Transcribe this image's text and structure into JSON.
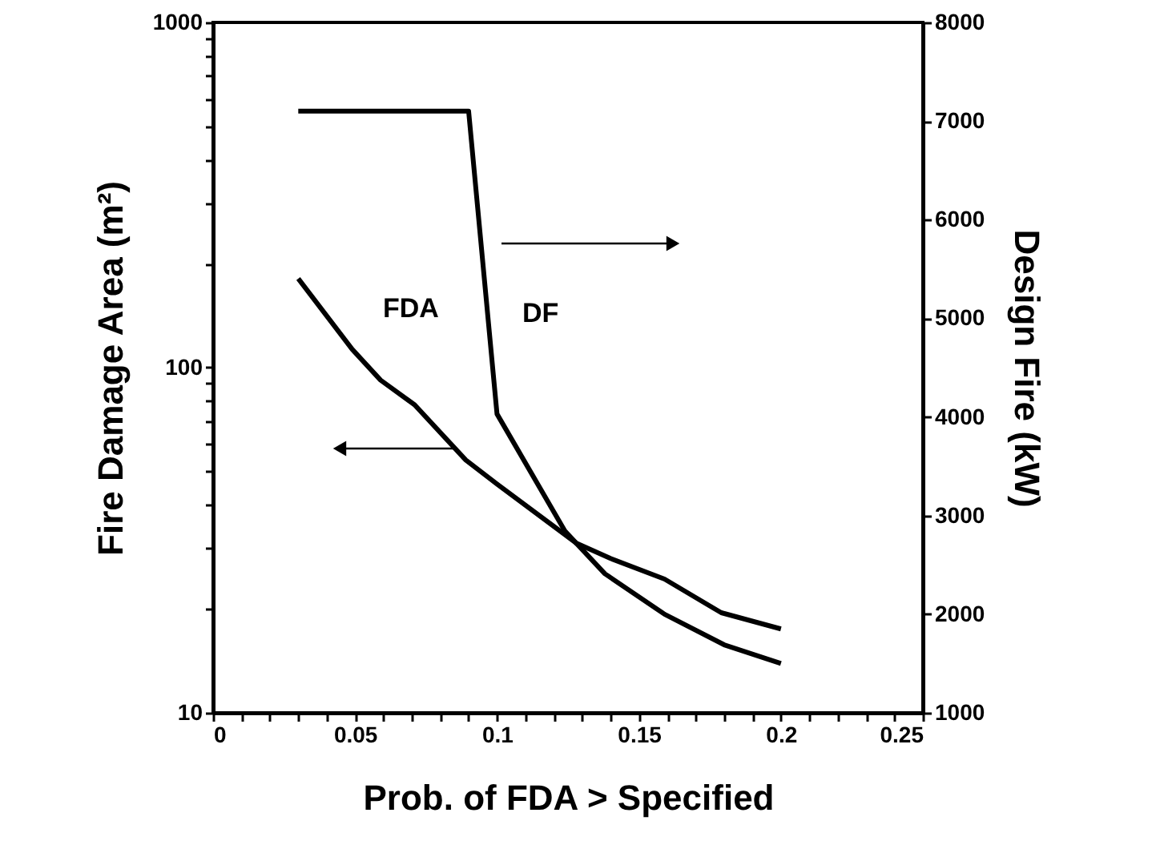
{
  "chart_data": {
    "type": "line",
    "xlabel": "Prob. of FDA > Specified",
    "ylabel": "Fire Damage Area (m²)",
    "y2label": "Design Fire (kW)",
    "log": "y",
    "grid": false,
    "marker": "none",
    "line_style": "solid",
    "xlim": [
      0,
      0.25
    ],
    "xticks": [
      0,
      {
        "value": 0.01,
        "label": null
      },
      {
        "value": 0.02,
        "label": null
      },
      {
        "value": 0.03,
        "label": null
      },
      {
        "value": 0.04,
        "label": null
      },
      0.05,
      {
        "value": 0.06,
        "label": null
      },
      {
        "value": 0.07,
        "label": null
      },
      {
        "value": 0.08,
        "label": null
      },
      {
        "value": 0.09,
        "label": null
      },
      0.1,
      {
        "value": 0.11,
        "label": null
      },
      {
        "value": 0.12,
        "label": null
      },
      {
        "value": 0.13,
        "label": null
      },
      {
        "value": 0.14,
        "label": null
      },
      0.15,
      {
        "value": 0.16,
        "label": null
      },
      {
        "value": 0.17,
        "label": null
      },
      {
        "value": 0.18,
        "label": null
      },
      {
        "value": 0.19,
        "label": null
      },
      0.2,
      {
        "value": 0.21,
        "label": null
      },
      {
        "value": 0.22,
        "label": null
      },
      {
        "value": 0.23,
        "label": null
      },
      {
        "value": 0.24,
        "label": null
      },
      0.25
    ],
    "ylim": [
      10,
      1000
    ],
    "yticks": [
      10,
      {
        "value": 20,
        "label": null
      },
      {
        "value": 30,
        "label": null
      },
      {
        "value": 40,
        "label": null
      },
      {
        "value": 50,
        "label": null
      },
      {
        "value": 60,
        "label": null
      },
      {
        "value": 70,
        "label": null
      },
      {
        "value": 80,
        "label": null
      },
      {
        "value": 90,
        "label": null
      },
      100,
      {
        "value": 200,
        "label": null
      },
      {
        "value": 300,
        "label": null
      },
      {
        "value": 400,
        "label": null
      },
      {
        "value": 500,
        "label": null
      },
      {
        "value": 600,
        "label": null
      },
      {
        "value": 700,
        "label": null
      },
      {
        "value": 800,
        "label": null
      },
      {
        "value": 900,
        "label": null
      },
      1000
    ],
    "y2lim": [
      1000,
      8000
    ],
    "y2ticks": [
      1000,
      2000,
      3000,
      4000,
      5000,
      6000,
      7000,
      8000
    ],
    "series": [
      {
        "color": "#000000",
        "x": [
          0.03,
          0.049,
          0.059,
          0.071,
          0.089,
          0.1,
          0.128,
          0.14,
          0.159,
          0.179,
          0.2
        ],
        "values": [
          181,
          113,
          92,
          78,
          54,
          46,
          31,
          28,
          24.4,
          19.5,
          17.5
        ]
      },
      {
        "color": "#000000",
        "axis": "y2",
        "x": [
          0.03,
          0.09,
          0.1,
          0.124,
          0.138,
          0.159,
          0.18,
          0.2
        ],
        "values": [
          7100,
          7100,
          4030,
          2840,
          2410,
          2000,
          1690,
          1500
        ]
      }
    ],
    "annotations": [
      "FDA",
      "DF"
    ]
  }
}
